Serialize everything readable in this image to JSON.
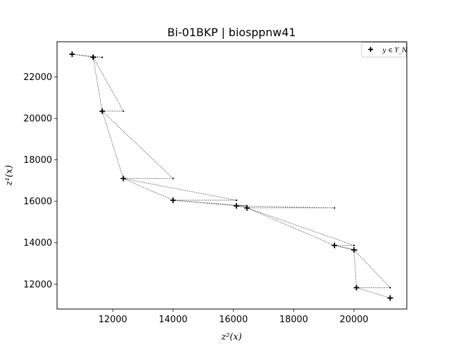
{
  "chart_data": {
    "type": "scatter",
    "title": "Bi-01BKP | biosppnw41",
    "xlabel": "z²(x)",
    "ylabel": "z¹(x)",
    "xlim": [
      10150,
      21750
    ],
    "ylim": [
      10800,
      23700
    ],
    "x_ticks": [
      12000,
      14000,
      16000,
      18000,
      20000
    ],
    "y_ticks": [
      12000,
      14000,
      16000,
      18000,
      20000,
      22000
    ],
    "grid": false,
    "legend": {
      "placement": "top-right",
      "label": "y ∈ Y_N"
    },
    "series": [
      {
        "name": "y ∈ Y_N",
        "marker": "plus",
        "color": "#000000",
        "points": [
          {
            "x": 10650,
            "y": 23100
          },
          {
            "x": 11350,
            "y": 22950
          },
          {
            "x": 11650,
            "y": 20350
          },
          {
            "x": 12350,
            "y": 17100
          },
          {
            "x": 14000,
            "y": 16050
          },
          {
            "x": 16100,
            "y": 15780
          },
          {
            "x": 16450,
            "y": 15680
          },
          {
            "x": 19350,
            "y": 13870
          },
          {
            "x": 20000,
            "y": 13650
          },
          {
            "x": 20080,
            "y": 11830
          },
          {
            "x": 21200,
            "y": 11330
          }
        ]
      }
    ],
    "local_nadir_points": [
      {
        "x": 11650,
        "y": 22950
      },
      {
        "x": 12350,
        "y": 20350
      },
      {
        "x": 14000,
        "y": 17100
      },
      {
        "x": 16100,
        "y": 16050
      },
      {
        "x": 16450,
        "y": 15780
      },
      {
        "x": 19350,
        "y": 15680
      },
      {
        "x": 20000,
        "y": 13870
      },
      {
        "x": 20080,
        "y": 13650
      },
      {
        "x": 21200,
        "y": 11830
      }
    ]
  }
}
